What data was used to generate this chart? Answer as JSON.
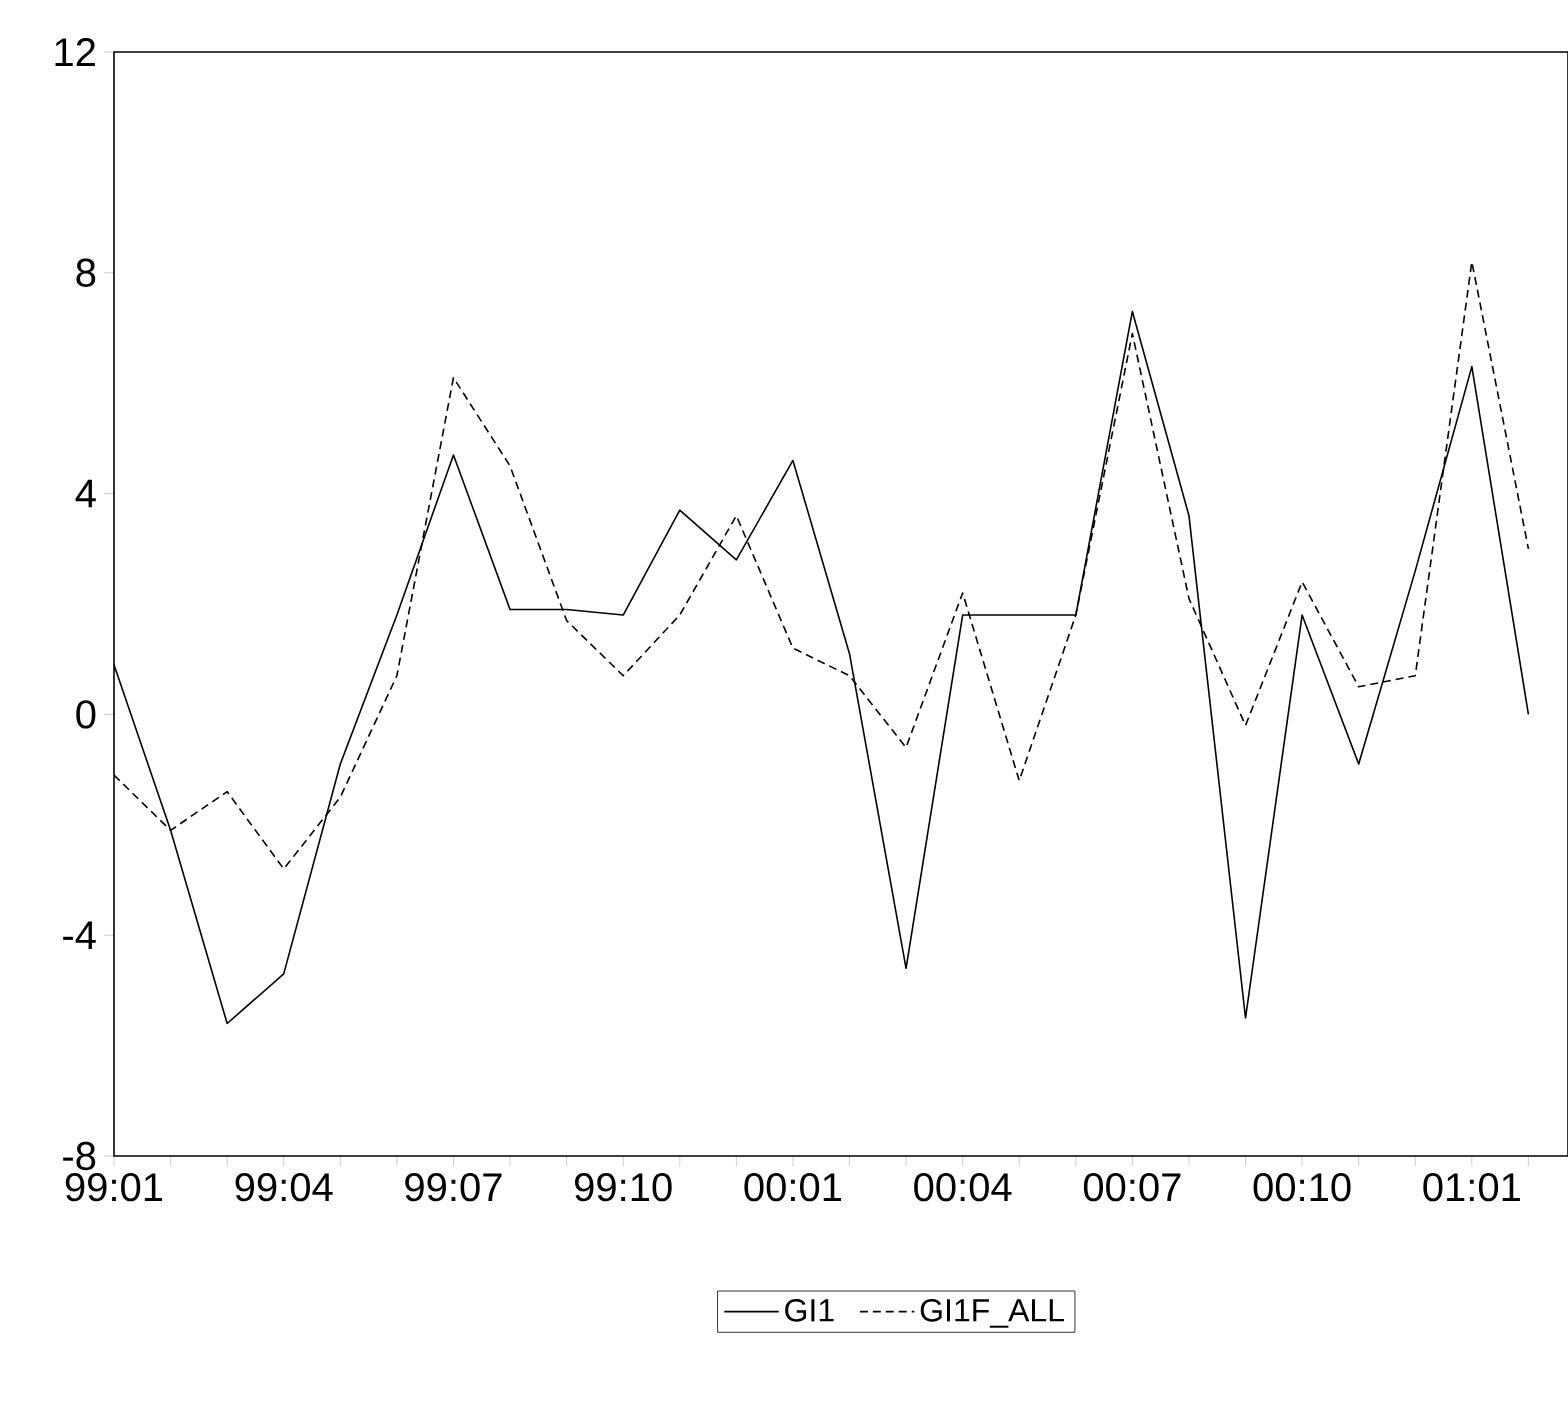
{
  "chart_data": {
    "type": "line",
    "categories": [
      "99:01",
      null,
      null,
      "99:04",
      null,
      null,
      "99:07",
      null,
      null,
      "99:10",
      null,
      null,
      "00:01",
      null,
      null,
      "00:04",
      null,
      null,
      "00:07",
      null,
      null,
      "00:10",
      null,
      null,
      "01:01",
      null
    ],
    "series": [
      {
        "name": "GI1",
        "color": "#000000",
        "line_style": "solid",
        "values": [
          0.9,
          -2.1,
          -5.6,
          -4.7,
          -0.9,
          1.8,
          4.7,
          1.9,
          1.9,
          1.8,
          3.7,
          2.8,
          4.6,
          1.1,
          -4.6,
          1.8,
          1.8,
          1.8,
          7.3,
          3.6,
          -5.5,
          1.8,
          -0.9,
          2.6,
          6.3,
          0.0
        ]
      },
      {
        "name": "GI1F_ALL",
        "color": "#000000",
        "line_style": "dashed",
        "values": [
          -1.1,
          -2.1,
          -1.4,
          -2.8,
          -1.5,
          0.7,
          6.1,
          4.5,
          1.7,
          0.7,
          1.8,
          3.6,
          1.2,
          0.7,
          -0.6,
          2.2,
          -1.2,
          1.8,
          6.9,
          2.1,
          -0.2,
          2.4,
          0.5,
          0.7,
          8.2,
          3.0
        ]
      }
    ],
    "ylim": [
      -8,
      12
    ],
    "yticks": [
      -8,
      -4,
      0,
      4,
      8,
      12
    ],
    "legend": "bottom"
  }
}
